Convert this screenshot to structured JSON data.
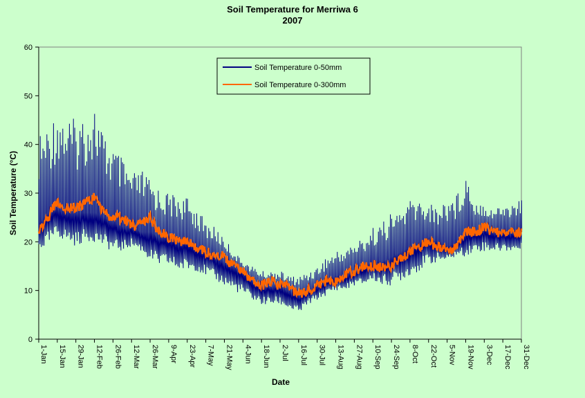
{
  "chart_data": {
    "type": "line",
    "title": "Soil Temperature for Merriwa 6",
    "subtitle": "2007",
    "xlabel": "Date",
    "ylabel": "Soil Temperature (°C)",
    "ylim": [
      0,
      60
    ],
    "yticks": [
      0,
      10,
      20,
      30,
      40,
      50,
      60
    ],
    "xlim": [
      "1-Jan",
      "31-Dec"
    ],
    "xticks": [
      "1-Jan",
      "15-Jan",
      "29-Jan",
      "12-Feb",
      "26-Feb",
      "12-Mar",
      "26-Mar",
      "9-Apr",
      "23-Apr",
      "7-May",
      "21-May",
      "4-Jun",
      "18-Jun",
      "2-Jul",
      "16-Jul",
      "30-Jul",
      "13-Aug",
      "27-Aug",
      "10-Sep",
      "24-Sep",
      "8-Oct",
      "22-Oct",
      "5-Nov",
      "19-Nov",
      "3-Dec",
      "17-Dec",
      "31-Dec"
    ],
    "grid": false,
    "legend_position": "top-center",
    "series": [
      {
        "name": "Soil Temperature 0-50mm",
        "color": "#000080",
        "x": [
          "1-Jan",
          "8-Jan",
          "15-Jan",
          "22-Jan",
          "29-Jan",
          "5-Feb",
          "12-Feb",
          "19-Feb",
          "26-Feb",
          "5-Mar",
          "12-Mar",
          "19-Mar",
          "26-Mar",
          "2-Apr",
          "9-Apr",
          "16-Apr",
          "23-Apr",
          "30-Apr",
          "7-May",
          "14-May",
          "21-May",
          "28-May",
          "4-Jun",
          "11-Jun",
          "18-Jun",
          "25-Jun",
          "2-Jul",
          "9-Jul",
          "16-Jul",
          "23-Jul",
          "30-Jul",
          "6-Aug",
          "13-Aug",
          "20-Aug",
          "27-Aug",
          "3-Sep",
          "10-Sep",
          "17-Sep",
          "24-Sep",
          "1-Oct",
          "8-Oct",
          "15-Oct",
          "22-Oct",
          "29-Oct",
          "5-Nov",
          "12-Nov",
          "19-Nov",
          "26-Nov",
          "3-Dec",
          "10-Dec",
          "17-Dec",
          "24-Dec",
          "31-Dec"
        ],
        "min": [
          18,
          19,
          21,
          20,
          19,
          20,
          20,
          19,
          18,
          18,
          19,
          18,
          16,
          15,
          15,
          14,
          14,
          14,
          13,
          12,
          11,
          10,
          9,
          8,
          7,
          7,
          7,
          6,
          5,
          7,
          8,
          9,
          10,
          10,
          11,
          11,
          12,
          11,
          11,
          12,
          13,
          14,
          15,
          16,
          16,
          17,
          17,
          18,
          18,
          18,
          18,
          18,
          18
        ],
        "max": [
          42,
          44,
          48,
          46,
          45,
          47,
          49,
          42,
          40,
          37,
          34,
          35,
          33,
          31,
          30,
          30,
          29,
          27,
          24,
          23,
          21,
          18,
          16,
          15,
          14,
          14,
          14,
          13,
          13,
          14,
          15,
          17,
          18,
          19,
          20,
          21,
          23,
          24,
          26,
          27,
          29,
          29,
          28,
          27,
          30,
          30,
          35,
          29,
          28,
          27,
          28,
          28,
          29
        ],
        "mean": [
          24,
          26,
          27,
          26,
          26,
          26,
          26,
          25,
          24,
          23,
          23,
          22,
          22,
          21,
          21,
          20,
          20,
          19,
          18,
          17,
          16,
          15,
          14,
          12,
          11,
          11,
          11,
          10,
          9,
          10,
          11,
          12,
          13,
          13,
          14,
          15,
          16,
          16,
          17,
          18,
          19,
          20,
          21,
          20,
          19,
          20,
          22,
          22,
          23,
          22,
          22,
          22,
          22
        ]
      },
      {
        "name": "Soil Temperature  0-300mm",
        "color": "#ff6600",
        "x": [
          "1-Jan",
          "8-Jan",
          "15-Jan",
          "22-Jan",
          "29-Jan",
          "5-Feb",
          "12-Feb",
          "19-Feb",
          "26-Feb",
          "5-Mar",
          "12-Mar",
          "19-Mar",
          "26-Mar",
          "2-Apr",
          "9-Apr",
          "16-Apr",
          "23-Apr",
          "30-Apr",
          "7-May",
          "14-May",
          "21-May",
          "28-May",
          "4-Jun",
          "11-Jun",
          "18-Jun",
          "25-Jun",
          "2-Jul",
          "9-Jul",
          "16-Jul",
          "23-Jul",
          "30-Jul",
          "6-Aug",
          "13-Aug",
          "20-Aug",
          "27-Aug",
          "3-Sep",
          "10-Sep",
          "17-Sep",
          "24-Sep",
          "1-Oct",
          "8-Oct",
          "15-Oct",
          "22-Oct",
          "29-Oct",
          "5-Nov",
          "12-Nov",
          "19-Nov",
          "26-Nov",
          "3-Dec",
          "10-Dec",
          "17-Dec",
          "24-Dec",
          "31-Dec"
        ],
        "values": [
          22,
          25,
          28,
          27,
          27,
          28,
          29,
          26,
          25,
          25,
          23,
          24,
          25,
          22,
          21,
          20,
          20,
          19,
          18,
          17,
          17,
          15,
          14,
          12,
          11,
          12,
          11,
          11,
          9,
          10,
          11,
          12,
          12,
          13,
          14,
          15,
          15,
          15,
          15,
          17,
          18,
          19,
          20,
          19,
          18,
          19,
          22,
          22,
          23,
          22,
          22,
          22,
          22
        ]
      }
    ]
  }
}
